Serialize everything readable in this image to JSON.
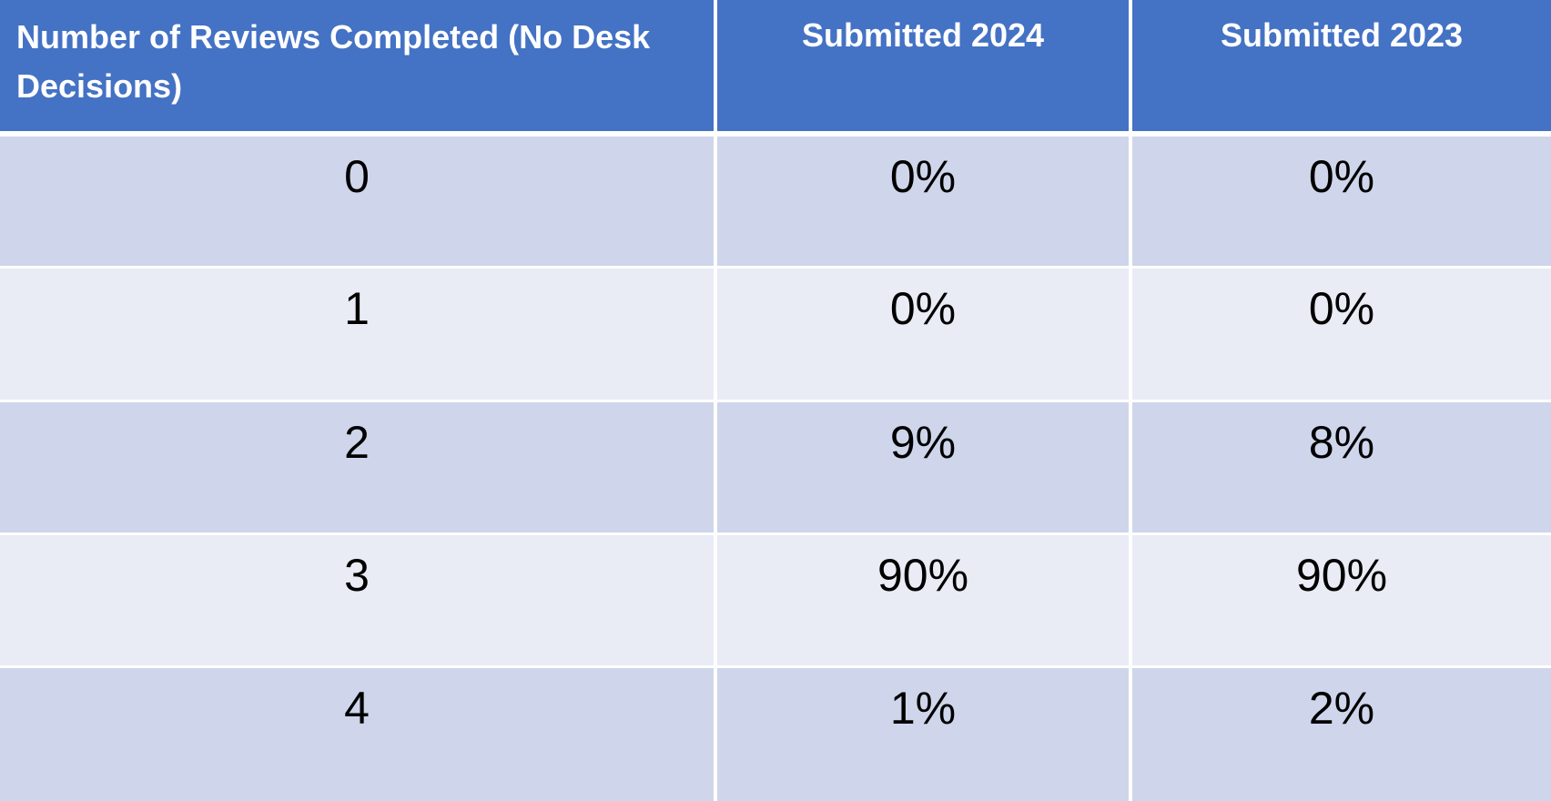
{
  "chart_data": {
    "type": "table",
    "columns": [
      "Number of Reviews Completed (No Desk Decisions)",
      "Submitted 2024",
      "Submitted 2023"
    ],
    "rows": [
      [
        "0",
        "0%",
        "0%"
      ],
      [
        "1",
        "0%",
        "0%"
      ],
      [
        "2",
        "9%",
        "8%"
      ],
      [
        "3",
        "90%",
        "90%"
      ],
      [
        "4",
        "1%",
        "2%"
      ]
    ]
  },
  "colors": {
    "header": "#4472c4",
    "band_dark": "#cfd5ea",
    "band_light": "#e9ebf5",
    "header_text": "#ffffff"
  }
}
